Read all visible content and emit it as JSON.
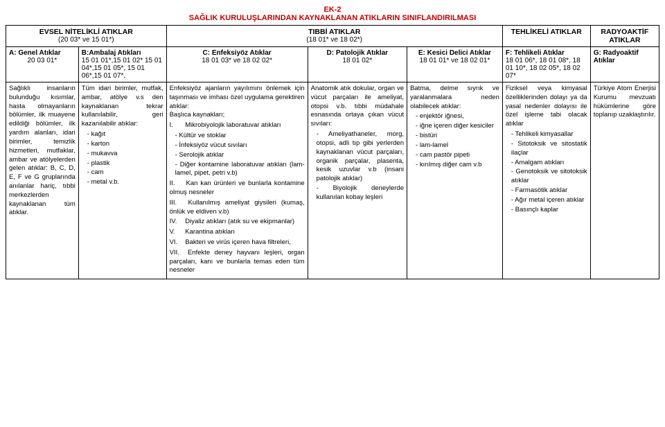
{
  "header": {
    "ek": "EK-2",
    "title": "SAĞLIK KURULUŞLARINDAN KAYNAKLANAN ATIKLARIN SINIFLANDIRILMASI"
  },
  "categories": {
    "evsel": {
      "title": "EVSEL NİTELİKLİ ATIKLAR",
      "sub": "(20 03* ve 15 01*)"
    },
    "tibbi": {
      "title": "TIBBİ ATIKLAR",
      "sub": "(18 01* ve 18 02*)"
    },
    "tehlikeli": {
      "title": "TEHLİKELİ ATIKLAR"
    },
    "radyo": {
      "title": "RADYOAKTİF ATIKLAR"
    }
  },
  "cols": {
    "a": {
      "head": "A: Genel Atıklar",
      "code": "20 03 01*"
    },
    "b": {
      "head": "B:Ambalaj Atıkları",
      "code": "15 01 01*,15 01 02* 15 01 04*,15 01 05*, 15 01 06*,15 01 07*,"
    },
    "c": {
      "head": "C: Enfeksiyöz Atıklar",
      "code": "18 01 03* ve 18 02 02*"
    },
    "d": {
      "head": "D: Patolojik Atıklar",
      "code": "18 01 02*"
    },
    "e": {
      "head": "E: Kesici Delici Atıklar",
      "code": "18 01 01* ve 18 02 01*"
    },
    "f": {
      "head": "F: Tehlikeli Atıklar",
      "code": "18 01 06*, 18 01 08*, 18 01 10*, 18 02 05*, 18 02 07*"
    },
    "g": {
      "head": "G: Radyoaktif Atıklar"
    }
  },
  "body": {
    "a": "Sağlıklı insanların bulunduğu kısımlar, hasta olmayanların bölümler, ilk muayene edildiği bölümler, ilk yardım alanları, idari birimler, temizlik hizmetleri, mutfaklar, ambar ve atölyelerden gelen atıklar: B, C, D, E, F ve G gruplarında anılanlar hariç, tıbbi merkezlerden kaynaklanan tüm atıklar.",
    "b": {
      "intro": "Tüm idari birimler, mutfak, ambar, atölye v.s den kaynaklanan tekrar kullanılabilir, geri kazanılabilir atıklar:",
      "items": [
        "kağıt",
        "karton",
        "mukavva",
        "plastik",
        "cam",
        "metal v.b."
      ]
    },
    "c": {
      "intro": "Enfeksiyöz ajanların yayılımını önlemek için taşınması ve imhası özel uygulama gerektiren atıklar:",
      "sub": "Başlıca kaynakları;",
      "roman": [
        {
          "n": "I.",
          "text": "Mikrobiyolojik laboratuvar atıkları",
          "sub": [
            "Kültür ve stoklar",
            "İnfeksiyöz vücut sıvıları",
            "Serolojik atıklar",
            "Diğer kontamine laboratuvar atıkları (lam-lamel, pipet, petri v.b)"
          ]
        },
        {
          "n": "II.",
          "text": "Kan kan ürünleri ve bunlarla kontamine olmuş nesneler"
        },
        {
          "n": "III.",
          "text": "Kullanılmış ameliyat giysileri (kumaş, önlük ve eldiven v.b)"
        },
        {
          "n": "IV.",
          "text": "Diyaliz atıkları (atık su ve ekipmanlar)"
        },
        {
          "n": "V.",
          "text": "Karantina atıkları"
        },
        {
          "n": "VI.",
          "text": "Bakteri ve virüs içeren hava filtreleri,"
        },
        {
          "n": "VII.",
          "text": "Enfekte deney hayvanı leşleri, organ parçaları, kanı ve bunlarla temas eden tüm nesneler"
        }
      ]
    },
    "d": {
      "intro": "Anatomik atık dokular, organ ve vücut parçaları ile ameliyat, otopsi v.b. tıbbi müdahale esnasında ortaya çıkan vücut sıvıları:",
      "items": [
        "Ameliyathaneler, morg, otopsi, adli tıp gibi yerlerden kaynaklanan vücut parçaları, organik parçalar, plasenta, kesik uzuvlar v.b (insani patolojik atıklar)",
        "Biyolojik deneylerde kullanılan kobay leşleri"
      ]
    },
    "e": {
      "intro": "Batma, delme sıyrık ve yaralanmalara neden olabilecek atıklar:",
      "items": [
        "enjektör iğnesi,",
        "iğne içeren diğer kesiciler",
        "bistüri",
        "lam-lamel",
        "cam pastör pipeti",
        "kırılmış diğer cam v.b"
      ]
    },
    "f": {
      "intro": "Fiziksel veya kimyasal özelliklerinden dolayı ya da yasal nedenler dolayısı ile özel işleme tabi olacak atıklar",
      "items": [
        "Tehlikeli kimyasallar",
        "Sitotoksik ve sitostatik ilaçlar",
        "Amalgam atıkları",
        "Genotoksik ve sitotoksik atıklar",
        "Farmasötik atıklar",
        "Ağır metal içeren atıklar",
        "Basınçlı kaplar"
      ]
    },
    "g": "Türkiye Atom Enerjisi Kurumu mevzuatı hükümlerine göre toplanıp uzaklaştırılır."
  }
}
